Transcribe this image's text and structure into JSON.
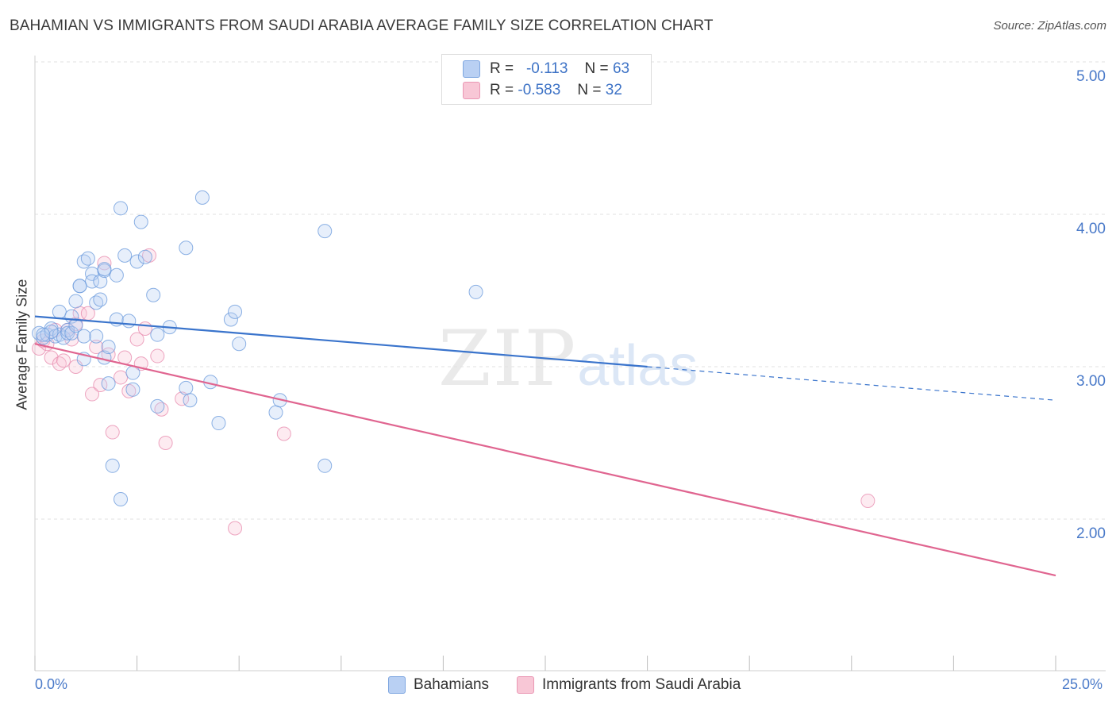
{
  "title": "BAHAMIAN VS IMMIGRANTS FROM SAUDI ARABIA AVERAGE FAMILY SIZE CORRELATION CHART",
  "source": "Source: ZipAtlas.com",
  "watermark": {
    "zip": "ZIP",
    "atlas": "atlas"
  },
  "legend_stats": [
    {
      "r_label": "R =",
      "r_value": "-0.113",
      "n_label": "N =",
      "n_value": "63"
    },
    {
      "r_label": "R =",
      "r_value": "-0.583",
      "n_label": "N =",
      "n_value": "32"
    }
  ],
  "chart_data": {
    "type": "scatter",
    "title": "BAHAMIAN VS IMMIGRANTS FROM SAUDI ARABIA AVERAGE FAMILY SIZE CORRELATION CHART",
    "xlabel": "",
    "ylabel": "Average Family Size",
    "xlim": [
      0,
      25
    ],
    "ylim": [
      1.0,
      5.15
    ],
    "x_tick_labels": [
      "0.0%",
      "25.0%"
    ],
    "y_ticks": [
      2.0,
      3.0,
      4.0,
      5.0
    ],
    "y_tick_labels": [
      "2.00",
      "3.00",
      "4.00",
      "5.00"
    ],
    "grid": true,
    "legend": "bottom-center",
    "series": [
      {
        "name": "Bahamians",
        "color": "#8fb5ea",
        "line_color": "#3a74cc",
        "trend": {
          "x0": 0,
          "y0": 3.33,
          "x1": 15,
          "y1": 3.0,
          "dashed_to_x": 25,
          "dashed_to_y": 2.78
        },
        "points": [
          [
            0.1,
            3.22
          ],
          [
            0.2,
            3.19
          ],
          [
            0.3,
            3.21
          ],
          [
            0.4,
            3.25
          ],
          [
            0.5,
            3.2
          ],
          [
            0.6,
            3.36
          ],
          [
            0.6,
            3.21
          ],
          [
            0.7,
            3.19
          ],
          [
            0.8,
            3.24
          ],
          [
            0.8,
            3.22
          ],
          [
            0.9,
            3.33
          ],
          [
            0.9,
            3.22
          ],
          [
            1.0,
            3.27
          ],
          [
            1.0,
            3.43
          ],
          [
            1.1,
            3.53
          ],
          [
            1.1,
            3.53
          ],
          [
            1.2,
            3.69
          ],
          [
            1.2,
            3.05
          ],
          [
            1.3,
            3.71
          ],
          [
            1.4,
            3.61
          ],
          [
            1.4,
            3.56
          ],
          [
            1.5,
            3.2
          ],
          [
            1.5,
            3.42
          ],
          [
            1.6,
            3.44
          ],
          [
            1.6,
            3.56
          ],
          [
            1.7,
            3.06
          ],
          [
            1.7,
            3.63
          ],
          [
            1.7,
            3.64
          ],
          [
            1.8,
            3.13
          ],
          [
            1.8,
            2.89
          ],
          [
            1.9,
            2.35
          ],
          [
            2.0,
            3.6
          ],
          [
            2.0,
            3.31
          ],
          [
            2.1,
            2.13
          ],
          [
            2.1,
            4.04
          ],
          [
            2.2,
            3.73
          ],
          [
            2.3,
            3.3
          ],
          [
            2.4,
            2.96
          ],
          [
            2.4,
            2.85
          ],
          [
            2.5,
            3.69
          ],
          [
            2.6,
            3.95
          ],
          [
            2.7,
            3.72
          ],
          [
            2.9,
            3.47
          ],
          [
            3.0,
            2.74
          ],
          [
            3.0,
            3.21
          ],
          [
            3.3,
            3.26
          ],
          [
            3.7,
            2.86
          ],
          [
            3.7,
            3.78
          ],
          [
            3.8,
            2.78
          ],
          [
            4.1,
            4.11
          ],
          [
            4.3,
            2.9
          ],
          [
            4.5,
            2.63
          ],
          [
            4.8,
            3.31
          ],
          [
            4.9,
            3.36
          ],
          [
            5.0,
            3.15
          ],
          [
            5.9,
            2.7
          ],
          [
            6.0,
            2.78
          ],
          [
            7.1,
            3.89
          ],
          [
            7.1,
            2.35
          ],
          [
            10.8,
            3.49
          ],
          [
            0.4,
            3.23
          ],
          [
            1.2,
            3.2
          ],
          [
            0.2,
            3.21
          ]
        ]
      },
      {
        "name": "Immigrants from Saudi Arabia",
        "color": "#f2a8c0",
        "line_color": "#e06590",
        "trend": {
          "x0": 0,
          "y0": 3.15,
          "x1": 25,
          "y1": 1.63
        },
        "points": [
          [
            0.1,
            3.12
          ],
          [
            0.2,
            3.17
          ],
          [
            0.3,
            3.15
          ],
          [
            0.4,
            3.06
          ],
          [
            0.5,
            3.24
          ],
          [
            0.6,
            3.02
          ],
          [
            0.7,
            3.04
          ],
          [
            0.8,
            3.24
          ],
          [
            0.9,
            3.18
          ],
          [
            1.0,
            3.28
          ],
          [
            1.0,
            3.0
          ],
          [
            1.1,
            3.35
          ],
          [
            1.3,
            3.35
          ],
          [
            1.4,
            2.82
          ],
          [
            1.5,
            3.13
          ],
          [
            1.6,
            2.88
          ],
          [
            1.7,
            3.68
          ],
          [
            1.8,
            3.08
          ],
          [
            1.9,
            2.57
          ],
          [
            2.1,
            2.93
          ],
          [
            2.2,
            3.06
          ],
          [
            2.3,
            2.84
          ],
          [
            2.5,
            3.18
          ],
          [
            2.6,
            3.02
          ],
          [
            2.7,
            3.25
          ],
          [
            2.8,
            3.73
          ],
          [
            3.0,
            3.07
          ],
          [
            3.1,
            2.72
          ],
          [
            3.2,
            2.5
          ],
          [
            3.6,
            2.79
          ],
          [
            4.9,
            1.94
          ],
          [
            6.1,
            2.56
          ]
        ],
        "outlier": [
          20.4,
          2.12
        ]
      }
    ]
  },
  "bottom_legend": [
    {
      "label": "Bahamians",
      "color": "#b9d0f3",
      "border": "#7ea6e0"
    },
    {
      "label": "Immigrants from Saudi Arabia",
      "color": "#f8c7d6",
      "border": "#ea97b4"
    }
  ]
}
